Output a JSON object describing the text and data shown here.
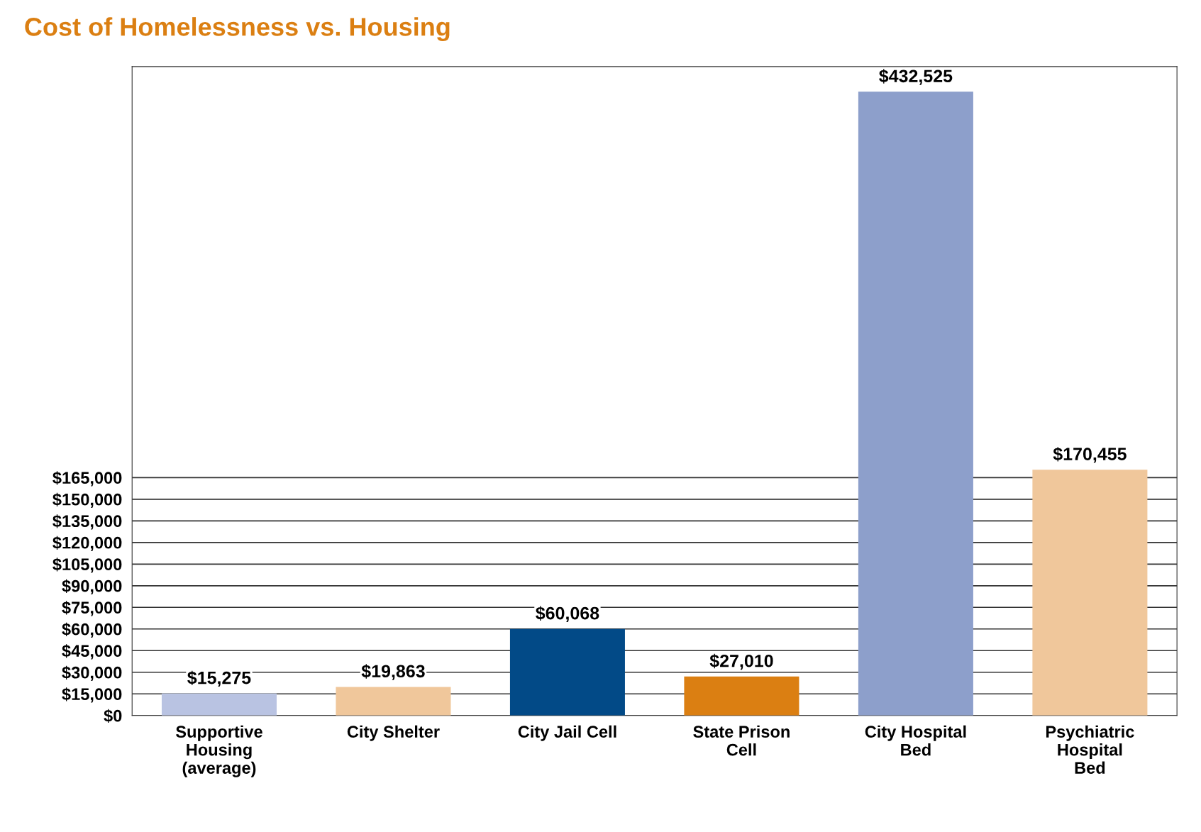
{
  "chart_data": {
    "type": "bar",
    "title": "Cost of Homelessness vs. Housing",
    "categories": [
      "Supportive\nHousing\n(average)",
      "City Shelter",
      "City Jail Cell",
      "State Prison\nCell",
      "City Hospital\nBed",
      "Psychiatric\nHospital\nBed"
    ],
    "values": [
      15275,
      19863,
      60068,
      27010,
      432525,
      170455
    ],
    "colors": [
      "#b9c3e2",
      "#f0c79b",
      "#024a87",
      "#db7f12",
      "#8d9fcb",
      "#f0c79b"
    ],
    "value_labels": [
      "$15,275",
      "$19,863",
      "$60,068",
      "$27,010",
      "$432,525",
      "$170,455"
    ],
    "ylim": [
      0,
      450000
    ],
    "yticks": [
      {
        "value": 0,
        "label": "$0"
      },
      {
        "value": 15000,
        "label": "$15,000"
      },
      {
        "value": 30000,
        "label": "$30,000"
      },
      {
        "value": 45000,
        "label": "$45,000"
      },
      {
        "value": 60000,
        "label": "$60,000"
      },
      {
        "value": 75000,
        "label": "$75,000"
      },
      {
        "value": 90000,
        "label": "$90,000"
      },
      {
        "value": 105000,
        "label": "$105,000"
      },
      {
        "value": 120000,
        "label": "$120,000"
      },
      {
        "value": 135000,
        "label": "$135,000"
      },
      {
        "value": 150000,
        "label": "$150,000"
      },
      {
        "value": 165000,
        "label": "$165,000"
      }
    ],
    "grid": "y"
  }
}
